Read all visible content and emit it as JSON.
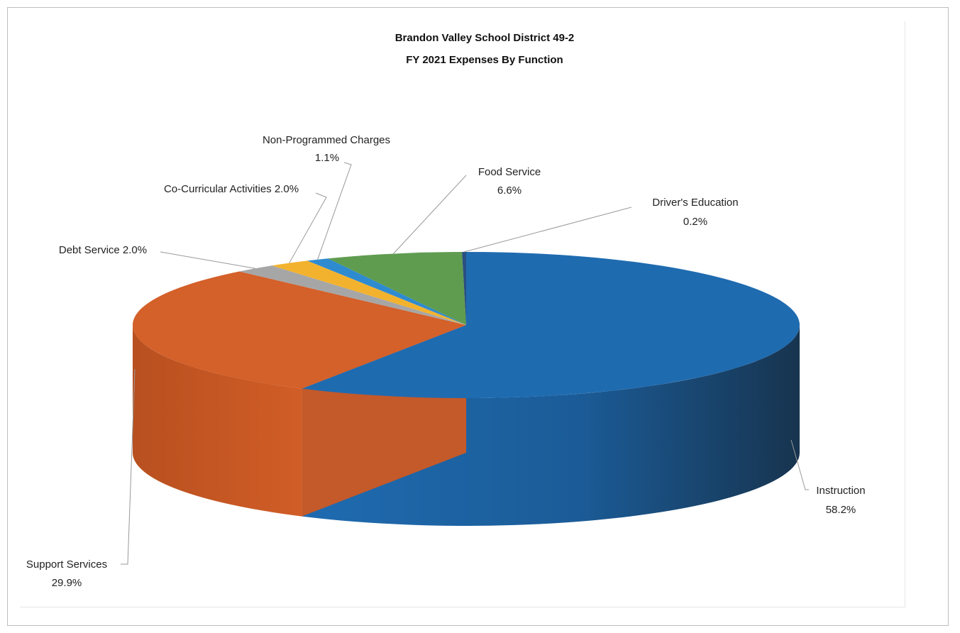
{
  "chart_data": {
    "type": "pie",
    "style": "3d",
    "title": "Brandon Valley School District 49-2",
    "subtitle": "FY 2021 Expenses By Function",
    "slices": [
      {
        "name": "Instruction",
        "value": 58.2,
        "label": "58.2%",
        "color": "#1f6bb0"
      },
      {
        "name": "Support Services",
        "value": 29.9,
        "label": "29.9%",
        "color": "#d4602a"
      },
      {
        "name": "Debt Service",
        "value": 2.0,
        "label": "2.0%",
        "color": "#a6a6a6"
      },
      {
        "name": "Co-Curricular Activities",
        "value": 2.0,
        "label": "2.0%",
        "color": "#f3b22e"
      },
      {
        "name": "Non-Programmed Charges",
        "value": 1.1,
        "label": "1.1%",
        "color": "#2e8bd0"
      },
      {
        "name": "Food Service",
        "value": 6.6,
        "label": "6.6%",
        "color": "#5f9c50"
      },
      {
        "name": "Driver's Education",
        "value": 0.2,
        "label": "0.2%",
        "color": "#2a4f80"
      }
    ],
    "legend": "none"
  },
  "labels": {
    "instruction_name": "Instruction",
    "instruction_pct": "58.2%",
    "support_name": "Support Services",
    "support_pct": "29.9%",
    "debt": "Debt Service 2.0%",
    "cocurricular": "Co-Curricular Activities 2.0%",
    "nonprog_name": "Non-Programmed Charges",
    "nonprog_pct": "1.1%",
    "food_name": "Food Service",
    "food_pct": "6.6%",
    "driver_name": "Driver's Education",
    "driver_pct": "0.2%"
  }
}
